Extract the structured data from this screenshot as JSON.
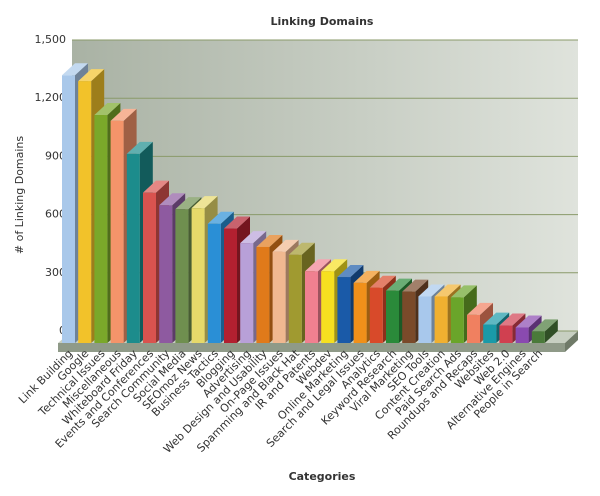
{
  "chart_data": {
    "type": "bar3d",
    "title": "Linking Domains",
    "x_label": "Categories",
    "y_label": "# of Linking Domains",
    "categories": [
      "Link Building",
      "Google",
      "Technical Issues",
      "Miscellaneous",
      "Whiteboard Friday",
      "Events and Conferences",
      "Search Community",
      "Social Media",
      "SEOmoz News",
      "Business Tactics",
      "Blogging",
      "Advertising",
      "Web Design and Usability",
      "On-Page Issues",
      "Spamming and Black Hat",
      "IR and Patents",
      "Webdev",
      "Online Marketing",
      "Search and Legal Issues",
      "Analytics",
      "Keyword Research",
      "Viral Marketing",
      "SEO Tools",
      "Content Creation",
      "Paid Search Ads",
      "Roundups and Recaps",
      "Websites",
      "Web 2.0",
      "Alternative Engines",
      "People in Search"
    ],
    "values": [
      1380,
      1350,
      1175,
      1145,
      975,
      775,
      710,
      690,
      695,
      615,
      590,
      515,
      495,
      470,
      455,
      370,
      370,
      340,
      310,
      285,
      270,
      265,
      240,
      240,
      235,
      145,
      95,
      90,
      80,
      60
    ],
    "colors": [
      "#a9c8ea",
      "#f2c22a",
      "#7aa82a",
      "#f4946a",
      "#1c8c8c",
      "#d9534f",
      "#8e5aa0",
      "#6f8f4f",
      "#e6d96a",
      "#2a8fd6",
      "#b22030",
      "#b8a0d8",
      "#e07a1a",
      "#f0b890",
      "#a09a30",
      "#f08090",
      "#f6e020",
      "#1a5aa8",
      "#f0901a",
      "#d84a2a",
      "#2a8a3a",
      "#7a4a2a",
      "#a8c8ec",
      "#f0b030",
      "#6aa52a",
      "#f08060",
      "#1a9aa8",
      "#d04050",
      "#8a4ab0",
      "#4a7a3a"
    ],
    "ylim": [
      0,
      1500
    ],
    "yticks": [
      0,
      300,
      600,
      900,
      {
        "value": 1200,
        "label": "1,200"
      },
      {
        "value": 1500,
        "label": "1,500"
      }
    ],
    "grid": true
  }
}
